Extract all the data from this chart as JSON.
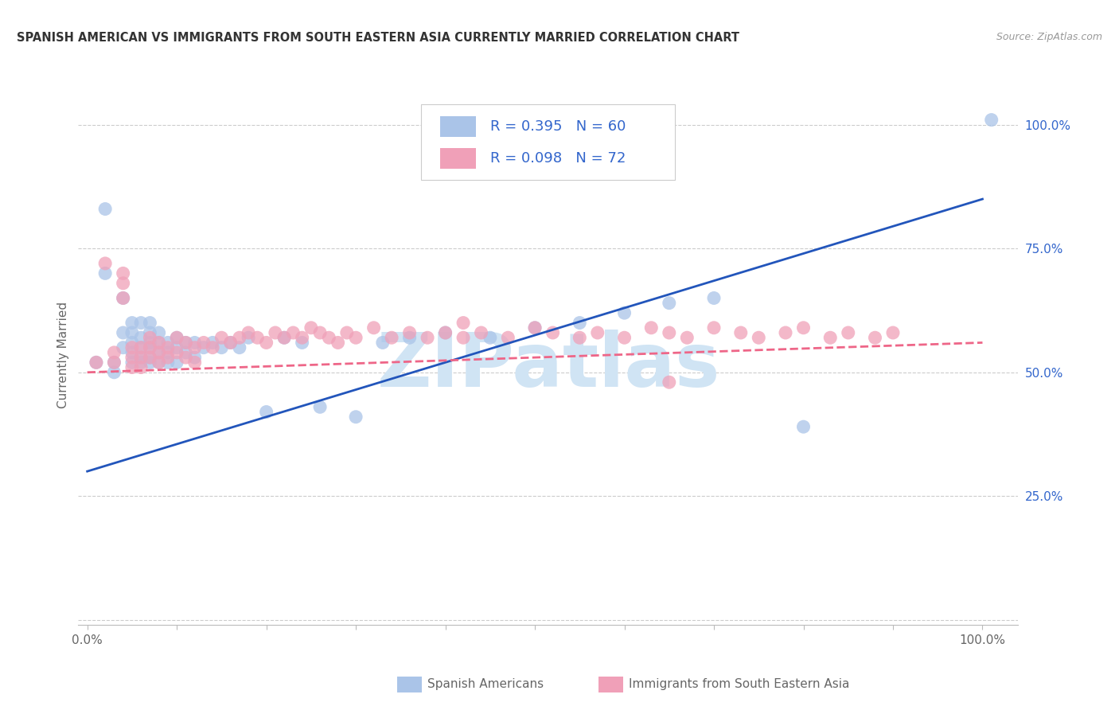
{
  "title": "SPANISH AMERICAN VS IMMIGRANTS FROM SOUTH EASTERN ASIA CURRENTLY MARRIED CORRELATION CHART",
  "source": "Source: ZipAtlas.com",
  "ylabel": "Currently Married",
  "xlim": [
    -0.01,
    1.04
  ],
  "ylim": [
    -0.01,
    1.08
  ],
  "blue_R": 0.395,
  "blue_N": 60,
  "pink_R": 0.098,
  "pink_N": 72,
  "blue_color": "#aac4e8",
  "pink_color": "#f0a0b8",
  "blue_line_color": "#2255bb",
  "pink_line_color": "#ee6688",
  "label_color": "#3366cc",
  "watermark_text": "ZIPatlas",
  "watermark_color": "#d0e4f4",
  "legend_label_blue": "Spanish Americans",
  "legend_label_pink": "Immigrants from South Eastern Asia",
  "grid_color": "#cccccc",
  "axis_color": "#bbbbbb",
  "text_color": "#666666",
  "title_color": "#333333",
  "blue_trendline_y": [
    0.3,
    0.85
  ],
  "pink_trendline_y": [
    0.5,
    0.56
  ],
  "blue_scatter_x": [
    0.01,
    0.02,
    0.02,
    0.03,
    0.03,
    0.04,
    0.04,
    0.04,
    0.05,
    0.05,
    0.05,
    0.05,
    0.05,
    0.06,
    0.06,
    0.06,
    0.06,
    0.06,
    0.07,
    0.07,
    0.07,
    0.07,
    0.07,
    0.07,
    0.08,
    0.08,
    0.08,
    0.08,
    0.09,
    0.09,
    0.09,
    0.1,
    0.1,
    0.1,
    0.11,
    0.11,
    0.12,
    0.12,
    0.13,
    0.14,
    0.15,
    0.16,
    0.17,
    0.18,
    0.2,
    0.22,
    0.24,
    0.26,
    0.3,
    0.33,
    0.36,
    0.4,
    0.45,
    0.5,
    0.55,
    0.6,
    0.65,
    0.7,
    0.8,
    1.01
  ],
  "blue_scatter_y": [
    0.52,
    0.83,
    0.7,
    0.52,
    0.5,
    0.65,
    0.58,
    0.55,
    0.6,
    0.58,
    0.56,
    0.54,
    0.52,
    0.6,
    0.57,
    0.55,
    0.53,
    0.52,
    0.6,
    0.58,
    0.56,
    0.55,
    0.53,
    0.52,
    0.58,
    0.56,
    0.54,
    0.52,
    0.56,
    0.54,
    0.52,
    0.57,
    0.55,
    0.52,
    0.56,
    0.54,
    0.56,
    0.53,
    0.55,
    0.56,
    0.55,
    0.56,
    0.55,
    0.57,
    0.42,
    0.57,
    0.56,
    0.43,
    0.41,
    0.56,
    0.57,
    0.58,
    0.57,
    0.59,
    0.6,
    0.62,
    0.64,
    0.65,
    0.39,
    1.01
  ],
  "pink_scatter_x": [
    0.01,
    0.02,
    0.03,
    0.03,
    0.04,
    0.04,
    0.04,
    0.05,
    0.05,
    0.05,
    0.06,
    0.06,
    0.06,
    0.07,
    0.07,
    0.07,
    0.08,
    0.08,
    0.08,
    0.09,
    0.09,
    0.1,
    0.1,
    0.11,
    0.11,
    0.12,
    0.12,
    0.13,
    0.14,
    0.15,
    0.16,
    0.17,
    0.18,
    0.19,
    0.2,
    0.21,
    0.22,
    0.23,
    0.24,
    0.25,
    0.26,
    0.27,
    0.28,
    0.29,
    0.3,
    0.32,
    0.34,
    0.36,
    0.38,
    0.4,
    0.42,
    0.44,
    0.47,
    0.5,
    0.52,
    0.55,
    0.57,
    0.6,
    0.63,
    0.65,
    0.67,
    0.7,
    0.73,
    0.75,
    0.78,
    0.8,
    0.83,
    0.85,
    0.88,
    0.9,
    0.65,
    0.42
  ],
  "pink_scatter_y": [
    0.52,
    0.72,
    0.52,
    0.54,
    0.7,
    0.68,
    0.65,
    0.55,
    0.53,
    0.51,
    0.55,
    0.53,
    0.51,
    0.57,
    0.55,
    0.53,
    0.56,
    0.54,
    0.52,
    0.55,
    0.53,
    0.57,
    0.54,
    0.56,
    0.53,
    0.55,
    0.52,
    0.56,
    0.55,
    0.57,
    0.56,
    0.57,
    0.58,
    0.57,
    0.56,
    0.58,
    0.57,
    0.58,
    0.57,
    0.59,
    0.58,
    0.57,
    0.56,
    0.58,
    0.57,
    0.59,
    0.57,
    0.58,
    0.57,
    0.58,
    0.57,
    0.58,
    0.57,
    0.59,
    0.58,
    0.57,
    0.58,
    0.57,
    0.59,
    0.58,
    0.57,
    0.59,
    0.58,
    0.57,
    0.58,
    0.59,
    0.57,
    0.58,
    0.57,
    0.58,
    0.48,
    0.6
  ],
  "right_ytick_positions": [
    0.0,
    0.25,
    0.5,
    0.75,
    1.0
  ],
  "right_ytick_labels": [
    "",
    "25.0%",
    "50.0%",
    "75.0%",
    "100.0%"
  ],
  "xtick_positions": [
    0.0,
    0.1,
    0.2,
    0.3,
    0.4,
    0.5,
    0.6,
    0.7,
    0.8,
    0.9,
    1.0
  ],
  "xtick_labels_show": [
    "0.0%",
    "",
    "",
    "",
    "",
    "",
    "",
    "",
    "",
    "",
    "100.0%"
  ]
}
